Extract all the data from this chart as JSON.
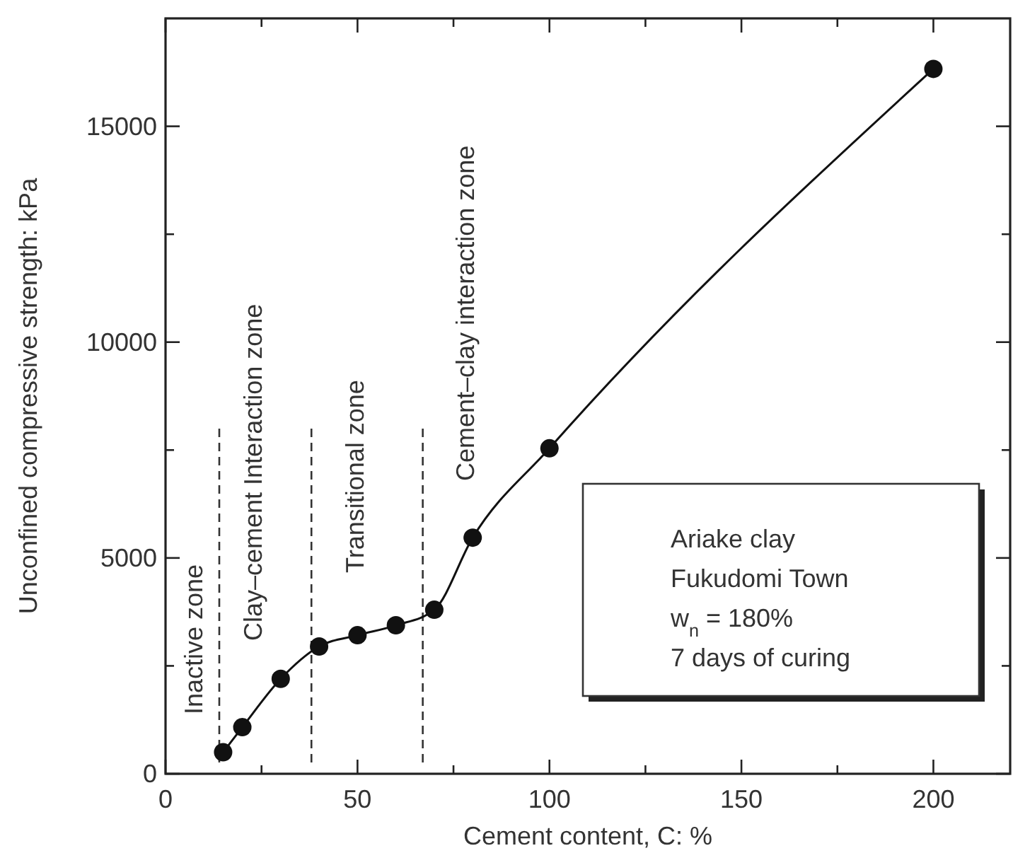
{
  "chart_data": {
    "type": "line",
    "xlabel": "Cement content, C: %",
    "ylabel": "Unconfined compressive strength: kPa",
    "x": [
      15,
      20,
      30,
      40,
      50,
      60,
      70,
      80,
      100,
      200
    ],
    "series": [
      {
        "color": "#111111",
        "values": [
          500,
          1080,
          2200,
          2950,
          3210,
          3440,
          3800,
          5470,
          7540,
          16330
        ]
      }
    ],
    "marker": "circle",
    "line_style": "solid",
    "xlim": [
      0,
      220
    ],
    "xticks": [
      0,
      {
        "value": 25,
        "label": null
      },
      50,
      {
        "value": 75,
        "label": null
      },
      100,
      {
        "value": 125,
        "label": null
      },
      150,
      {
        "value": 175,
        "label": null
      },
      200
    ],
    "ylim": [
      0,
      17500
    ],
    "yticks": [
      0,
      {
        "value": 2500,
        "label": null
      },
      5000,
      {
        "value": 7500,
        "label": null
      },
      10000,
      {
        "value": 12500,
        "label": null
      },
      15000
    ],
    "ref_lines": [
      {
        "axis": "x",
        "value": 14,
        "line_style": "dashed"
      },
      {
        "axis": "x",
        "value": 38,
        "line_style": "dashed"
      },
      {
        "axis": "x",
        "value": 67,
        "line_style": "dashed"
      }
    ],
    "annotations": [
      "Inactive zone",
      "Clay–cement Interaction zone",
      "Transitional zone",
      "Cement–clay interaction zone",
      "Ariake clay",
      "Fukudomi Town",
      "w$_{n}$ = 180%",
      "7 days of curing"
    ]
  }
}
